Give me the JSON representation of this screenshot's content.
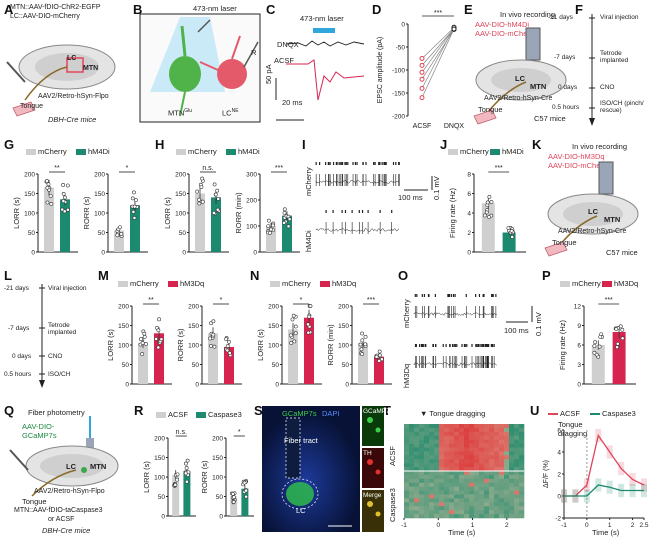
{
  "colors": {
    "mcherry": "#cfcfcf",
    "hm4di": "#1b8a6f",
    "hm3dq": "#d6244f",
    "acsf": "#cfcfcf",
    "caspase3": "#1b8a6f",
    "green": "#3aa84a",
    "red": "#e0455a",
    "blue": "#31a6dc"
  },
  "panel_labels": [
    "A",
    "B",
    "C",
    "D",
    "E",
    "F",
    "G",
    "H",
    "I",
    "J",
    "K",
    "L",
    "M",
    "N",
    "O",
    "P",
    "Q",
    "R",
    "S",
    "T",
    "U"
  ],
  "A": {
    "line1": "MTN::AAV-fDIO-ChR2-EGFP",
    "line2": "LC::AAV-DIO-mCherry",
    "lc": "LC",
    "mtn": "MTN",
    "aav": "AAV2/Retro-hSyn-Flpo",
    "tongue": "Tongue",
    "mouse": "DBH-Cre mice"
  },
  "B": {
    "laser": "473-nm laser",
    "r": "R",
    "mtn": "MTN",
    "mtn_sup": "Glu",
    "lc": "LC",
    "lc_sup": "NE"
  },
  "C": {
    "laser": "473-nm laser",
    "dnqx": "DNQX",
    "acsf": "ACSF",
    "scale_y": "50 pA",
    "scale_x": "20 ms"
  },
  "D": {
    "ylabel": "EPSC amplitude (pA)",
    "sig": "***",
    "x1": "ACSF",
    "x2": "DNQX",
    "yticks": [
      "0",
      "-50",
      "-100",
      "-150",
      "-200"
    ]
  },
  "E": {
    "title": "In vivo recording",
    "line1": "AAV-DIO-hM4Di",
    "line2": "AAV-DIO-mCherry",
    "lc": "LC",
    "mtn": "MTN",
    "aav": "AAV2/Retro-hSyn-Cre",
    "tongue": "Tongue",
    "mouse": "C57 mice"
  },
  "F": {
    "steps": [
      {
        "time": "-21 days",
        "label": "Viral injection"
      },
      {
        "time": "-7 days",
        "label": "Tetrode implanted"
      },
      {
        "time": "0 days",
        "label": "CNO"
      },
      {
        "time": "0.5 hours",
        "label": "ISO/CH (pinch/ rescue)"
      }
    ]
  },
  "G": {
    "legend": [
      "mCherry",
      "hM4Di"
    ],
    "left": {
      "ylabel": "LORR (s)",
      "sig": "**",
      "yticks": [
        "0",
        "50",
        "100",
        "150",
        "200"
      ]
    },
    "right": {
      "ylabel": "RORR (s)",
      "sig": "*",
      "yticks": [
        "0",
        "50",
        "100",
        "150",
        "200"
      ]
    }
  },
  "H": {
    "legend": [
      "mCherry",
      "hM4Di"
    ],
    "left": {
      "ylabel": "LORR (s)",
      "sig": "n.s.",
      "yticks": [
        "0",
        "50",
        "100",
        "150",
        "200"
      ]
    },
    "right": {
      "ylabel": "RORR (min)",
      "sig": "***",
      "yticks": [
        "0",
        "100",
        "200",
        "300"
      ]
    }
  },
  "I": {
    "top": "mCherry",
    "bottom": "hM4Di",
    "scale_x": "100 ms",
    "scale_y": "0.1 mV"
  },
  "J": {
    "legend": [
      "mCherry",
      "hM4Di"
    ],
    "ylabel": "Firing rate (Hz)",
    "sig": "***",
    "yticks": [
      "0",
      "2",
      "4",
      "6",
      "8"
    ]
  },
  "K": {
    "title": "In vivo recording",
    "line1": "AAV-DIO-hM3Dq",
    "line2": "AAV-DIO-mCherry",
    "lc": "LC",
    "mtn": "MTN",
    "aav": "AAV2/Retro-hSyn-Cre",
    "tongue": "Tongue",
    "mouse": "C57 mice"
  },
  "L": {
    "steps": [
      {
        "time": "-21 days",
        "label": "Viral injection"
      },
      {
        "time": "-7 days",
        "label": "Tetrode implanted"
      },
      {
        "time": "0 days",
        "label": "CNO"
      },
      {
        "time": "0.5 hours",
        "label": "ISO/CH"
      }
    ]
  },
  "M": {
    "legend": [
      "mCherry",
      "hM3Dq"
    ],
    "left": {
      "ylabel": "LORR (s)",
      "sig": "**",
      "yticks": [
        "0",
        "50",
        "100",
        "150",
        "200"
      ]
    },
    "right": {
      "ylabel": "RORR (s)",
      "sig": "*",
      "yticks": [
        "0",
        "50",
        "100",
        "150",
        "200"
      ]
    }
  },
  "N": {
    "legend": [
      "mCherry",
      "hM3Dq"
    ],
    "left": {
      "ylabel": "LORR (s)",
      "sig": "*",
      "yticks": [
        "0",
        "50",
        "100",
        "150",
        "200"
      ]
    },
    "right": {
      "ylabel": "RORR (min)",
      "sig": "***",
      "yticks": [
        "0",
        "50",
        "100",
        "150",
        "200"
      ]
    }
  },
  "O": {
    "top": "mCherry",
    "bottom": "hM3Dq",
    "scale_x": "100 ms",
    "scale_y": "0.1 mV"
  },
  "P": {
    "legend": [
      "mCherry",
      "hM3Dq"
    ],
    "ylabel": "Firing rate (Hz)",
    "sig": "***",
    "yticks": [
      "0",
      "3",
      "6",
      "9",
      "12"
    ]
  },
  "Q": {
    "title": "Fiber photometry",
    "line1": "AAV-DIO-",
    "line2": "GCaMP7s",
    "lc": "LC",
    "mtn": "MTN",
    "aav": "AAV2/Retro-hSyn-Flpo",
    "tongue": "Tongue",
    "caption1": "MTN::AAV-fDIO-taCaspase3",
    "caption2": "or ACSF",
    "mouse": "DBH-Cre mice"
  },
  "R": {
    "legend": [
      "ACSF",
      "Caspase3"
    ],
    "left": {
      "ylabel": "LORR (s)",
      "sig": "n.s.",
      "yticks": [
        "0",
        "50",
        "100",
        "150",
        "200"
      ]
    },
    "right": {
      "ylabel": "RORR (s)",
      "sig": "*",
      "yticks": [
        "0",
        "50",
        "100",
        "150",
        "200"
      ]
    }
  },
  "S": {
    "title_g": "GCaMP7s",
    "title_b": "DAPI",
    "fiber": "Fiber tract",
    "lc": "LC",
    "inset1": "GCaMP7s",
    "inset2": "TH",
    "inset3": "Merge"
  },
  "T": {
    "title": "Tongue dragging",
    "row1": "ACSF",
    "row2": "Caspase3",
    "xlabel": "Time (s)",
    "xticks": [
      "-1",
      "0",
      "1",
      "2"
    ]
  },
  "U": {
    "legend": [
      "ACSF",
      "Caspase3"
    ],
    "annotation": "Tongue dragging",
    "ylabel": "ΔF/F (%)",
    "xlabel": "Time (s)",
    "yticks": [
      "-2",
      "0",
      "2",
      "4",
      "6"
    ],
    "xticks": [
      "-1",
      "0",
      "1",
      "2",
      "2.5"
    ]
  },
  "chart_data": [
    {
      "panel": "D",
      "type": "scatter",
      "categories": [
        "ACSF",
        "DNQX"
      ],
      "pairs": [
        [
          -75,
          -8
        ],
        [
          -90,
          -10
        ],
        [
          -105,
          -9
        ],
        [
          -120,
          -12
        ],
        [
          -140,
          -7
        ],
        [
          -160,
          -11
        ]
      ],
      "ylim": [
        -200,
        0
      ]
    },
    {
      "panel": "G-left",
      "type": "bar",
      "categories": [
        "mCherry",
        "hM4Di"
      ],
      "values": [
        165,
        135
      ],
      "ylim": [
        0,
        200
      ]
    },
    {
      "panel": "G-right",
      "type": "bar",
      "categories": [
        "mCherry",
        "hM4Di"
      ],
      "values": [
        55,
        120
      ],
      "ylim": [
        0,
        200
      ]
    },
    {
      "panel": "H-left",
      "type": "bar",
      "categories": [
        "mCherry",
        "hM4Di"
      ],
      "values": [
        150,
        140
      ],
      "ylim": [
        0,
        200
      ]
    },
    {
      "panel": "H-right",
      "type": "bar",
      "categories": [
        "mCherry",
        "hM4Di"
      ],
      "values": [
        100,
        140
      ],
      "ylim": [
        0,
        300
      ]
    },
    {
      "panel": "J",
      "type": "bar",
      "categories": [
        "mCherry",
        "hM4Di"
      ],
      "values": [
        5,
        2
      ],
      "ylim": [
        0,
        8
      ]
    },
    {
      "panel": "M-left",
      "type": "bar",
      "categories": [
        "mCherry",
        "hM3Dq"
      ],
      "values": [
        105,
        130
      ],
      "ylim": [
        0,
        200
      ]
    },
    {
      "panel": "M-right",
      "type": "bar",
      "categories": [
        "mCherry",
        "hM3Dq"
      ],
      "values": [
        130,
        95
      ],
      "ylim": [
        0,
        200
      ]
    },
    {
      "panel": "N-left",
      "type": "bar",
      "categories": [
        "mCherry",
        "hM3Dq"
      ],
      "values": [
        140,
        170
      ],
      "ylim": [
        0,
        200
      ]
    },
    {
      "panel": "N-right",
      "type": "bar",
      "categories": [
        "mCherry",
        "hM3Dq"
      ],
      "values": [
        105,
        70
      ],
      "ylim": [
        0,
        200
      ]
    },
    {
      "panel": "P",
      "type": "bar",
      "categories": [
        "mCherry",
        "hM3Dq"
      ],
      "values": [
        6,
        8
      ],
      "ylim": [
        0,
        12
      ]
    },
    {
      "panel": "R-left",
      "type": "bar",
      "categories": [
        "ACSF",
        "Caspase3"
      ],
      "values": [
        105,
        115
      ],
      "ylim": [
        0,
        200
      ]
    },
    {
      "panel": "R-right",
      "type": "bar",
      "categories": [
        "ACSF",
        "Caspase3"
      ],
      "values": [
        50,
        70
      ],
      "ylim": [
        0,
        200
      ]
    },
    {
      "panel": "U",
      "type": "line",
      "x": [
        -1,
        -0.5,
        0,
        0.5,
        1,
        1.5,
        2,
        2.5
      ],
      "series": [
        {
          "name": "ACSF",
          "values": [
            0,
            0,
            1,
            5.5,
            4,
            2.5,
            1.5,
            1
          ]
        },
        {
          "name": "Caspase3",
          "values": [
            0,
            0,
            0,
            1,
            0.8,
            0.5,
            0.5,
            0.5
          ]
        }
      ],
      "ylim": [
        -2,
        6
      ]
    }
  ]
}
